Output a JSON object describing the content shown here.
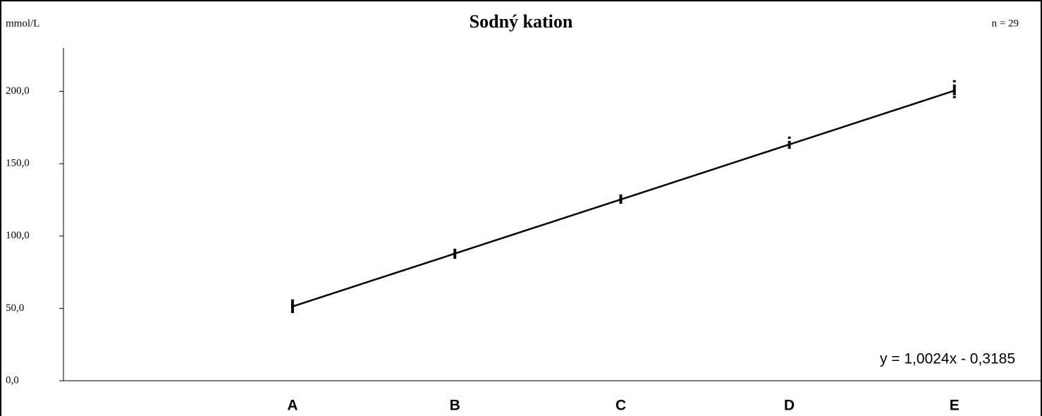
{
  "chart_data": {
    "type": "scatter",
    "title": "Sodný kation",
    "unit_label": "mmol/L",
    "n_label": "n = 29",
    "categories": [
      "A",
      "B",
      "C",
      "D",
      "E"
    ],
    "x": [
      51.5,
      88,
      125.3,
      163.2,
      200.3
    ],
    "xlim": [
      0,
      220
    ],
    "points": [
      [
        47.5,
        49,
        50.5,
        51.5,
        52.5,
        54,
        55.5
      ],
      [
        85,
        86.5,
        88,
        89,
        90.5
      ],
      [
        123,
        124.5,
        125.5,
        126.5,
        128
      ],
      [
        161,
        162.5,
        163.5,
        165,
        168
      ],
      [
        196,
        198,
        199.5,
        201,
        202.5,
        204,
        207
      ]
    ],
    "color": "#000000",
    "trendline": {
      "label": "y = 1,0024x - 0,3185",
      "slope": 1.0024,
      "intercept": -0.3185
    },
    "ylim": [
      0,
      230
    ],
    "yticks": [
      {
        "value": 0,
        "label": "0,0"
      },
      {
        "value": 50,
        "label": "50,0"
      },
      {
        "value": 100,
        "label": "100,0"
      },
      {
        "value": 150,
        "label": "150,0"
      },
      {
        "value": 200,
        "label": "200,0"
      }
    ]
  }
}
